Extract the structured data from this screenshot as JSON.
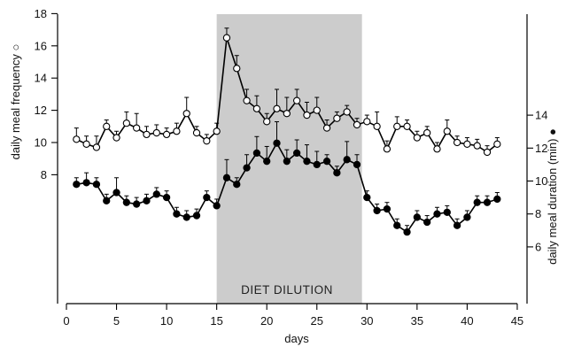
{
  "chart_data": {
    "type": "line",
    "xlabel": "days",
    "ylabel_left": "daily meal frequency ○",
    "ylabel_right": "daily meal duration (min) ●",
    "xlim": [
      0,
      45
    ],
    "ylim_left": [
      0,
      18
    ],
    "ylim_right": [
      5,
      17
    ],
    "x_ticks": [
      0,
      5,
      10,
      15,
      20,
      25,
      30,
      35,
      40,
      45
    ],
    "y_left_ticks": [
      8,
      10,
      12,
      14,
      16,
      18
    ],
    "y_right_ticks": [
      6,
      8,
      10,
      12,
      14
    ],
    "shaded_region": {
      "x_start": 15,
      "x_end": 29.5,
      "label": "DIET DILUTION",
      "color": "#cccccc"
    },
    "series": [
      {
        "marker": "open-circle",
        "axis": "left",
        "x": [
          1,
          2,
          3,
          4,
          5,
          6,
          7,
          8,
          9,
          10,
          11,
          12,
          13,
          14,
          15,
          16,
          17,
          18,
          19,
          20,
          21,
          22,
          23,
          24,
          25,
          26,
          27,
          28,
          29,
          30,
          31,
          32,
          33,
          34,
          35,
          36,
          37,
          38,
          39,
          40,
          41,
          42,
          43
        ],
        "values": [
          10.2,
          9.9,
          9.7,
          11.0,
          10.3,
          11.2,
          10.9,
          10.5,
          10.6,
          10.5,
          10.7,
          11.8,
          10.6,
          10.1,
          10.7,
          16.5,
          14.6,
          12.6,
          12.1,
          11.3,
          12.1,
          11.8,
          12.6,
          11.7,
          12.0,
          10.9,
          11.5,
          11.9,
          11.1,
          11.3,
          11.0,
          9.6,
          11.0,
          11.0,
          10.3,
          10.6,
          9.6,
          10.7,
          10.0,
          9.9,
          9.8,
          9.4,
          9.9
        ],
        "error": [
          0.7,
          0.5,
          0.7,
          0.4,
          0.4,
          0.7,
          0.9,
          0.5,
          0.5,
          0.4,
          0.5,
          1.0,
          0.4,
          0.4,
          0.5,
          0.6,
          0.8,
          0.7,
          0.8,
          0.5,
          1.2,
          1.0,
          0.7,
          0.8,
          0.8,
          0.5,
          0.4,
          0.4,
          0.4,
          0.4,
          0.9,
          0.5,
          0.6,
          0.4,
          0.4,
          0.4,
          0.4,
          0.7,
          0.4,
          0.4,
          0.4,
          0.4,
          0.4
        ]
      },
      {
        "marker": "filled-circle",
        "axis": "right",
        "x": [
          1,
          2,
          3,
          4,
          5,
          6,
          7,
          8,
          9,
          10,
          11,
          12,
          13,
          14,
          15,
          16,
          17,
          18,
          19,
          20,
          21,
          22,
          23,
          24,
          25,
          26,
          27,
          28,
          29,
          30,
          31,
          32,
          33,
          34,
          35,
          36,
          37,
          38,
          39,
          40,
          41,
          42,
          43
        ],
        "values": [
          9.8,
          9.9,
          9.8,
          8.8,
          9.3,
          8.7,
          8.6,
          8.8,
          9.2,
          9.0,
          8.0,
          7.8,
          7.9,
          9.0,
          8.5,
          10.2,
          9.8,
          10.8,
          11.7,
          11.2,
          12.3,
          11.2,
          11.7,
          11.2,
          11.0,
          11.2,
          10.5,
          11.3,
          11.0,
          9.0,
          8.2,
          8.3,
          7.3,
          6.9,
          7.8,
          7.5,
          8.0,
          8.1,
          7.3,
          7.8,
          8.7,
          8.7,
          8.9
        ],
        "error": [
          0.4,
          0.6,
          0.4,
          0.4,
          0.9,
          0.4,
          0.4,
          0.4,
          0.4,
          0.4,
          0.4,
          0.4,
          0.4,
          0.4,
          0.4,
          1.1,
          0.4,
          0.8,
          1.0,
          0.9,
          1.3,
          0.7,
          0.8,
          1.0,
          0.8,
          0.4,
          0.4,
          1.1,
          0.6,
          0.4,
          0.4,
          0.4,
          0.4,
          0.4,
          0.4,
          0.4,
          0.4,
          0.4,
          0.4,
          0.4,
          0.4,
          0.4,
          0.4
        ]
      }
    ]
  }
}
